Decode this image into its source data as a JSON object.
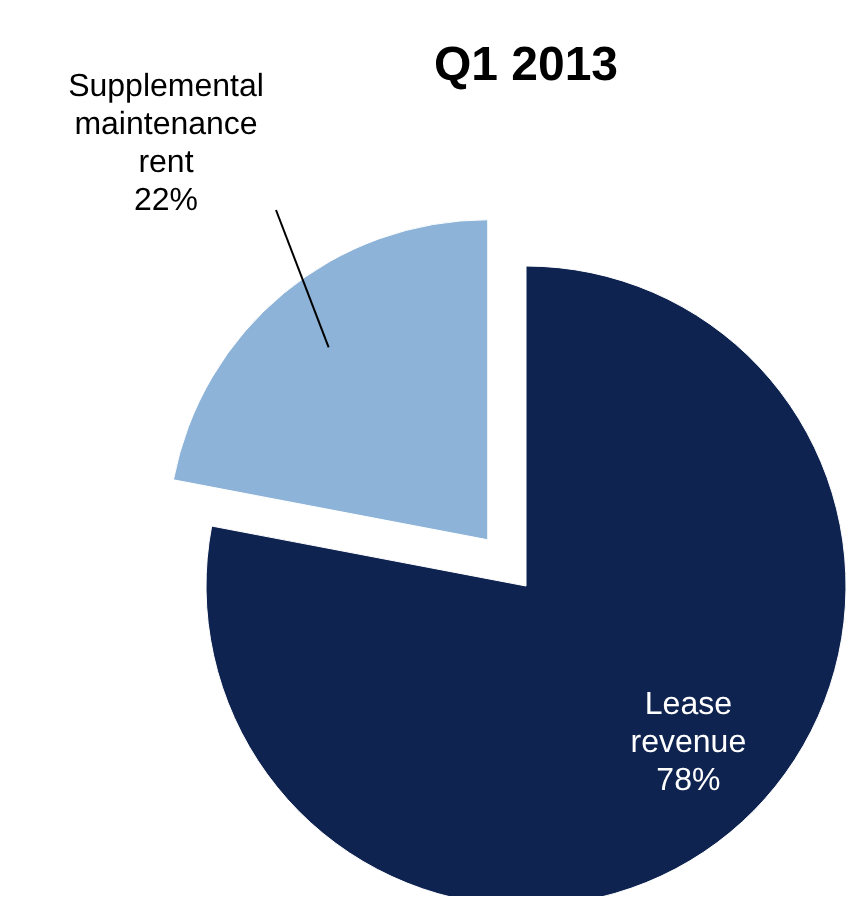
{
  "chart_data": {
    "type": "pie",
    "title": "Q1 2013",
    "categories": [
      "Lease revenue",
      "Supplemental maintenance rent"
    ],
    "values": [
      78,
      22
    ],
    "colors": [
      "#0f2350",
      "#8db3d8"
    ],
    "value_labels": [
      "78%",
      "22%"
    ]
  }
}
